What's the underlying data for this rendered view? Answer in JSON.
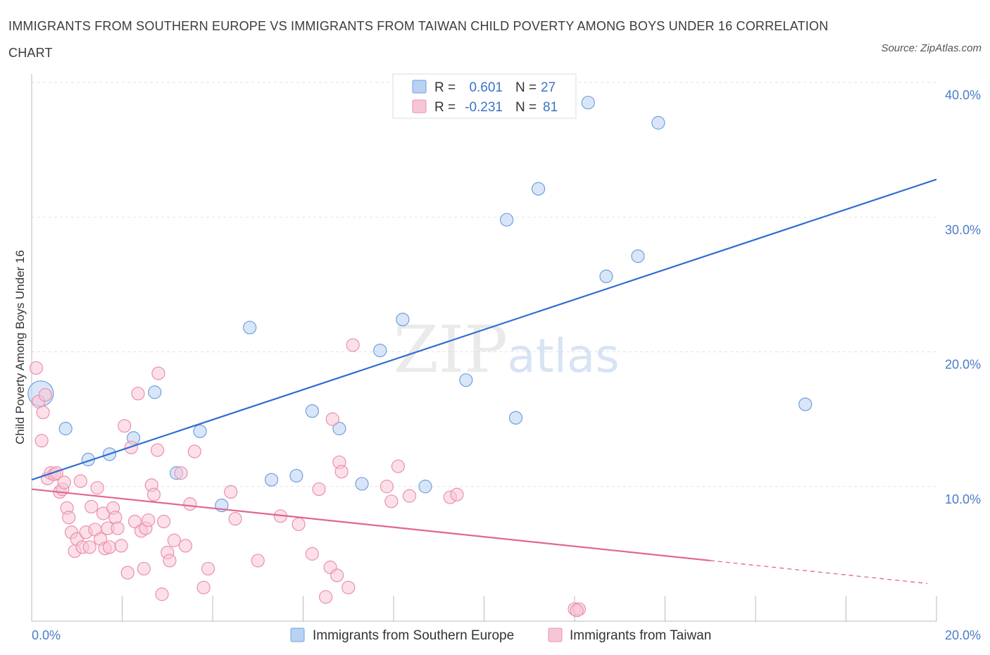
{
  "chart_data": {
    "type": "scatter",
    "title": "IMMIGRANTS FROM SOUTHERN EUROPE VS IMMIGRANTS FROM TAIWAN CHILD POVERTY AMONG BOYS UNDER 16 CORRELATION CHART",
    "source": "Source: ZipAtlas.com",
    "xlabel": "",
    "ylabel": "Child Poverty Among Boys Under 16",
    "xlim": [
      0,
      20
    ],
    "ylim": [
      0,
      40
    ],
    "y_ticks": [
      10,
      20,
      30,
      40
    ],
    "y_tick_labels": [
      "10.0%",
      "20.0%",
      "30.0%",
      "40.0%"
    ],
    "x_tick_labels": [
      "0.0%",
      "20.0%"
    ],
    "grid": true,
    "watermark": {
      "part1": "ZIP",
      "part2": "atlas"
    },
    "legend": {
      "placement": "top-center",
      "rows": [
        {
          "r_label": "R =",
          "r_value": "0.601",
          "n_label": "N =",
          "n_value": "27"
        },
        {
          "r_label": "R =",
          "r_value": "-0.231",
          "n_label": "N =",
          "n_value": "81"
        }
      ]
    },
    "series": [
      {
        "name": "Immigrants from Southern Europe",
        "color": "#6f9fe0",
        "fill": "#b9d1f3",
        "trend": {
          "x": [
            0,
            20
          ],
          "y": [
            10.5,
            32.8
          ],
          "color": "#2f6fce"
        },
        "points": [
          {
            "x": 0.2,
            "y": 16.9,
            "big": true
          },
          {
            "x": 0.75,
            "y": 14.3
          },
          {
            "x": 1.25,
            "y": 12.0
          },
          {
            "x": 1.72,
            "y": 12.4
          },
          {
            "x": 2.25,
            "y": 13.6
          },
          {
            "x": 2.72,
            "y": 17.0
          },
          {
            "x": 3.2,
            "y": 11.0
          },
          {
            "x": 3.72,
            "y": 14.1
          },
          {
            "x": 4.2,
            "y": 8.6
          },
          {
            "x": 4.82,
            "y": 21.8
          },
          {
            "x": 5.3,
            "y": 10.5
          },
          {
            "x": 5.85,
            "y": 10.8
          },
          {
            "x": 6.2,
            "y": 15.6
          },
          {
            "x": 6.8,
            "y": 14.3
          },
          {
            "x": 7.3,
            "y": 10.2
          },
          {
            "x": 7.7,
            "y": 20.1
          },
          {
            "x": 8.2,
            "y": 22.4
          },
          {
            "x": 8.7,
            "y": 10.0
          },
          {
            "x": 9.6,
            "y": 17.9
          },
          {
            "x": 10.5,
            "y": 29.8
          },
          {
            "x": 10.7,
            "y": 15.1
          },
          {
            "x": 11.2,
            "y": 32.1
          },
          {
            "x": 12.3,
            "y": 38.5
          },
          {
            "x": 12.7,
            "y": 25.6
          },
          {
            "x": 13.4,
            "y": 27.1
          },
          {
            "x": 13.85,
            "y": 37.0
          },
          {
            "x": 17.1,
            "y": 16.1
          }
        ]
      },
      {
        "name": "Immigrants from Taiwan",
        "color": "#ec8fad",
        "fill": "#f7c6d6",
        "trend": {
          "x": [
            0,
            15
          ],
          "y": [
            9.8,
            4.5
          ],
          "dash_x": [
            15,
            19.8
          ],
          "dash_y": [
            4.5,
            2.8
          ],
          "color": "#e0668f"
        },
        "points": [
          {
            "x": 0.1,
            "y": 18.8
          },
          {
            "x": 0.15,
            "y": 16.3
          },
          {
            "x": 0.22,
            "y": 13.4
          },
          {
            "x": 0.25,
            "y": 15.5
          },
          {
            "x": 0.3,
            "y": 16.8
          },
          {
            "x": 0.35,
            "y": 10.6
          },
          {
            "x": 0.42,
            "y": 11.0
          },
          {
            "x": 0.5,
            "y": 10.9
          },
          {
            "x": 0.55,
            "y": 11.0
          },
          {
            "x": 0.62,
            "y": 9.6
          },
          {
            "x": 0.68,
            "y": 9.8
          },
          {
            "x": 0.72,
            "y": 10.3
          },
          {
            "x": 0.78,
            "y": 8.4
          },
          {
            "x": 0.82,
            "y": 7.7
          },
          {
            "x": 0.88,
            "y": 6.6
          },
          {
            "x": 0.95,
            "y": 5.2
          },
          {
            "x": 1.0,
            "y": 6.1
          },
          {
            "x": 1.08,
            "y": 10.4
          },
          {
            "x": 1.12,
            "y": 5.5
          },
          {
            "x": 1.2,
            "y": 6.6
          },
          {
            "x": 1.28,
            "y": 5.5
          },
          {
            "x": 1.32,
            "y": 8.5
          },
          {
            "x": 1.4,
            "y": 6.8
          },
          {
            "x": 1.45,
            "y": 9.9
          },
          {
            "x": 1.52,
            "y": 6.1
          },
          {
            "x": 1.58,
            "y": 8.0
          },
          {
            "x": 1.62,
            "y": 5.4
          },
          {
            "x": 1.68,
            "y": 6.9
          },
          {
            "x": 1.72,
            "y": 5.5
          },
          {
            "x": 1.8,
            "y": 8.4
          },
          {
            "x": 1.85,
            "y": 7.7
          },
          {
            "x": 1.9,
            "y": 6.9
          },
          {
            "x": 1.98,
            "y": 5.6
          },
          {
            "x": 2.05,
            "y": 14.5
          },
          {
            "x": 2.12,
            "y": 3.6
          },
          {
            "x": 2.2,
            "y": 12.9
          },
          {
            "x": 2.28,
            "y": 7.4
          },
          {
            "x": 2.35,
            "y": 16.9
          },
          {
            "x": 2.42,
            "y": 6.7
          },
          {
            "x": 2.48,
            "y": 3.9
          },
          {
            "x": 2.52,
            "y": 6.9
          },
          {
            "x": 2.58,
            "y": 7.5
          },
          {
            "x": 2.65,
            "y": 10.1
          },
          {
            "x": 2.7,
            "y": 9.4
          },
          {
            "x": 2.78,
            "y": 12.7
          },
          {
            "x": 2.8,
            "y": 18.4
          },
          {
            "x": 2.88,
            "y": 2.0
          },
          {
            "x": 2.92,
            "y": 7.4
          },
          {
            "x": 3.0,
            "y": 5.1
          },
          {
            "x": 3.05,
            "y": 4.5
          },
          {
            "x": 3.15,
            "y": 6.0
          },
          {
            "x": 3.3,
            "y": 11.0
          },
          {
            "x": 3.4,
            "y": 5.6
          },
          {
            "x": 3.5,
            "y": 8.7
          },
          {
            "x": 3.6,
            "y": 12.6
          },
          {
            "x": 3.8,
            "y": 2.5
          },
          {
            "x": 3.9,
            "y": 3.9
          },
          {
            "x": 4.4,
            "y": 9.6
          },
          {
            "x": 4.5,
            "y": 7.6
          },
          {
            "x": 5.0,
            "y": 4.5
          },
          {
            "x": 5.5,
            "y": 7.8
          },
          {
            "x": 5.9,
            "y": 7.2
          },
          {
            "x": 6.2,
            "y": 5.0
          },
          {
            "x": 6.35,
            "y": 9.8
          },
          {
            "x": 6.5,
            "y": 1.8
          },
          {
            "x": 6.6,
            "y": 4.0
          },
          {
            "x": 6.65,
            "y": 15.0
          },
          {
            "x": 6.75,
            "y": 3.4
          },
          {
            "x": 6.8,
            "y": 11.8
          },
          {
            "x": 6.85,
            "y": 11.1
          },
          {
            "x": 7.0,
            "y": 2.5
          },
          {
            "x": 7.1,
            "y": 20.5
          },
          {
            "x": 7.85,
            "y": 10.0
          },
          {
            "x": 7.95,
            "y": 8.9
          },
          {
            "x": 8.1,
            "y": 11.5
          },
          {
            "x": 8.35,
            "y": 9.3
          },
          {
            "x": 9.25,
            "y": 9.2
          },
          {
            "x": 9.4,
            "y": 9.4
          },
          {
            "x": 12.0,
            "y": 0.9
          },
          {
            "x": 12.1,
            "y": 0.9
          },
          {
            "x": 12.05,
            "y": 0.8
          }
        ]
      }
    ]
  }
}
